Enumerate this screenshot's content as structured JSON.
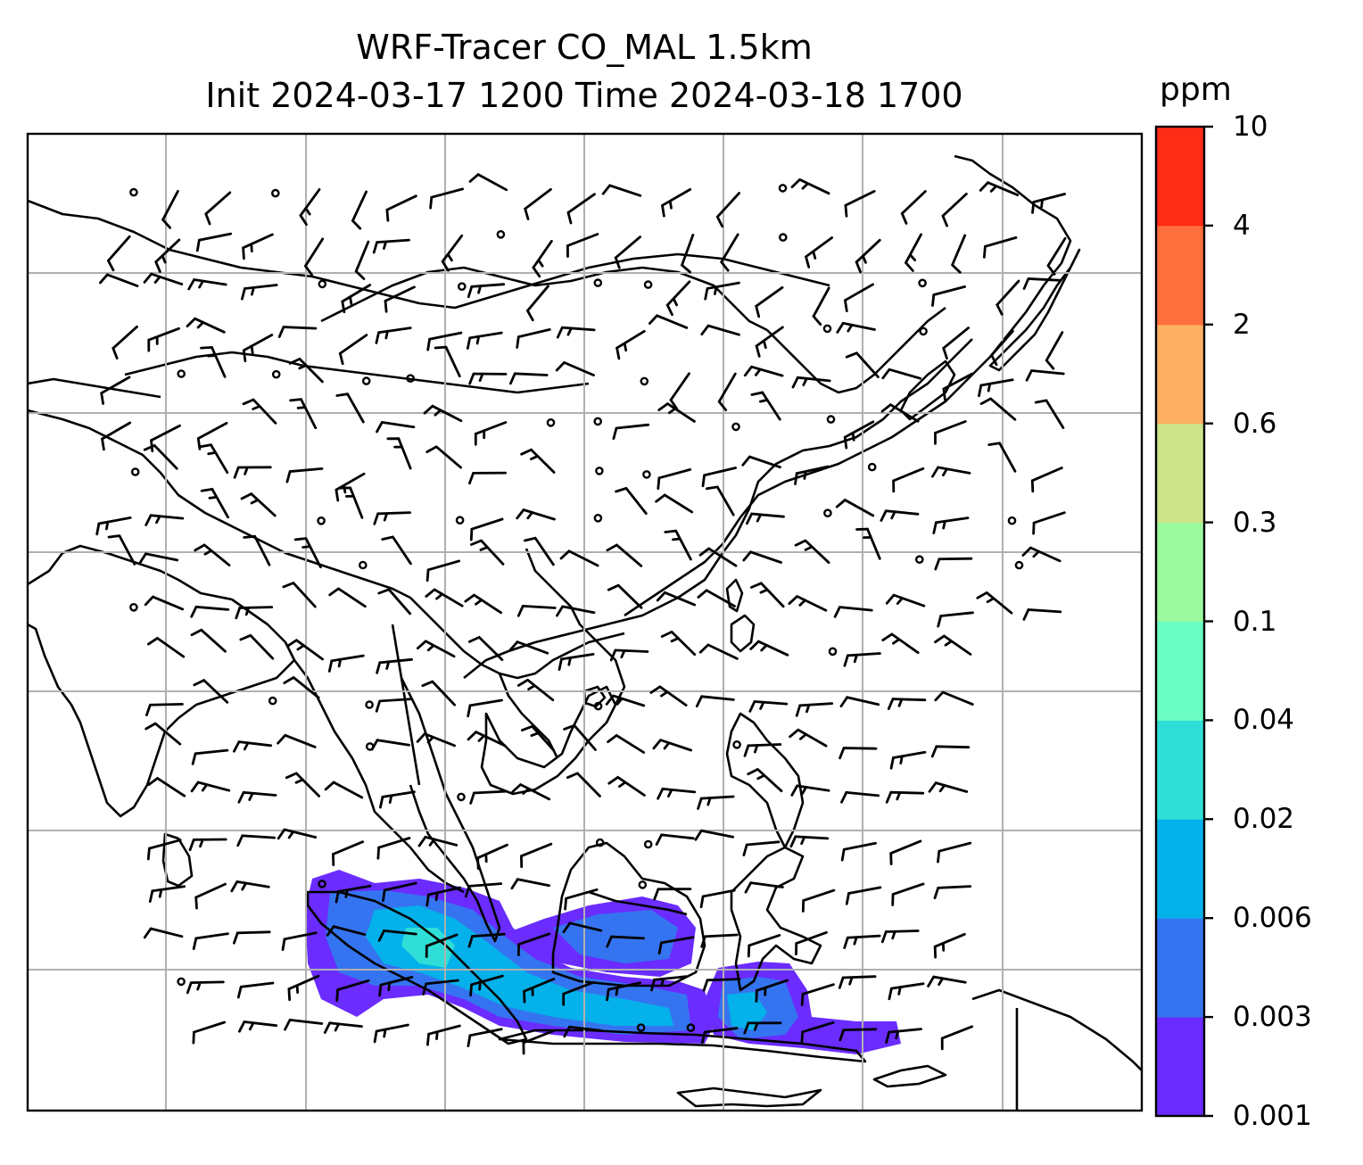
{
  "title": {
    "line1": "WRF-Tracer CO_MAL 1.5km",
    "line2": "Init 2024-03-17 1200 Time 2024-03-18 1700"
  },
  "colorbar": {
    "unit": "ppm",
    "levels": [
      "0.001",
      "0.003",
      "0.006",
      "0.02",
      "0.04",
      "0.1",
      "0.3",
      "0.6",
      "2",
      "4",
      "10"
    ],
    "colors": [
      "#6a2cff",
      "#3574f0",
      "#04b1ea",
      "#2fded6",
      "#6afdc4",
      "#9af99c",
      "#cde388",
      "#feb062",
      "#ff6f3d",
      "#ff2c16"
    ]
  },
  "map": {
    "border_color": "#000000",
    "grid_color": "#b0b0b0",
    "plume_colors": {
      "low": "#6a2cff",
      "mid": "#3574f0",
      "high": "#04b1ea",
      "peak": "#2fded6"
    }
  }
}
